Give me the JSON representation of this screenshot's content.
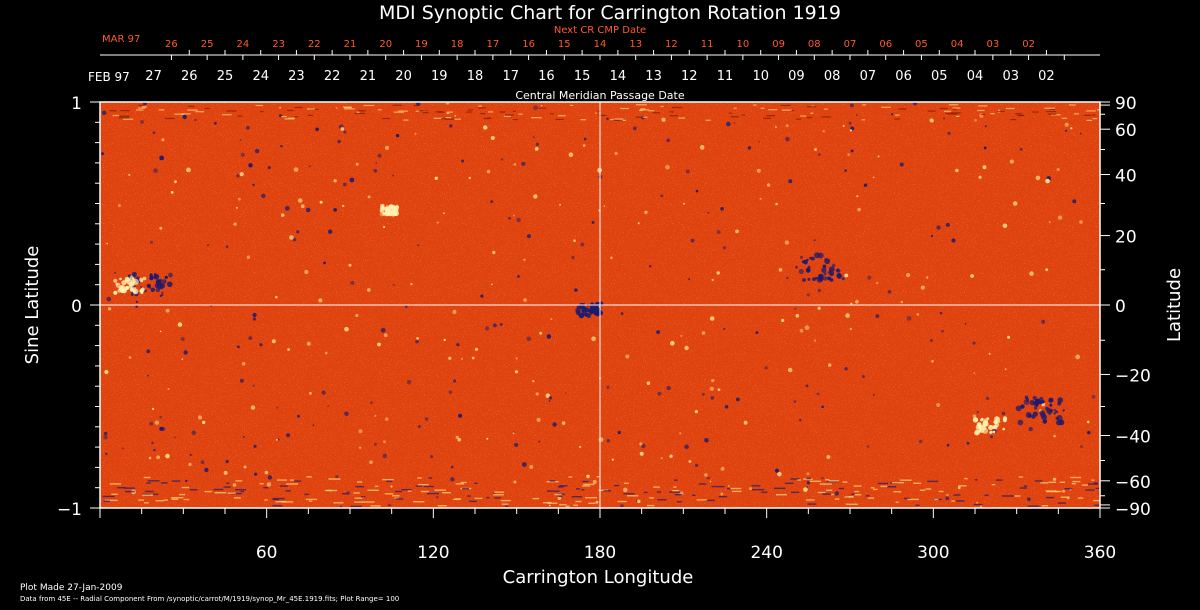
{
  "chart_data": {
    "type": "heatmap",
    "title": "MDI Synoptic Chart for Carrington Rotation 1919",
    "xlabel": "Carrington Longitude",
    "ylabel_left": "Sine Latitude",
    "ylabel_right": "Latitude",
    "xlim": [
      0,
      360
    ],
    "ylim": [
      -1,
      1
    ],
    "x_ticks": [
      60,
      120,
      180,
      240,
      300,
      360
    ],
    "y_ticks_left": [
      1,
      0,
      -1
    ],
    "y_ticks_right": [
      90,
      60,
      40,
      20,
      0,
      -20,
      -40,
      -60,
      -90
    ],
    "grid_lines": {
      "x": 180,
      "y": 0
    },
    "top_axis_label": "Central Meridian Passage Date",
    "top_axis_month": "FEB 97",
    "top_axis_dates": [
      "27",
      "26",
      "25",
      "24",
      "23",
      "22",
      "21",
      "20",
      "19",
      "18",
      "17",
      "16",
      "15",
      "14",
      "13",
      "12",
      "11",
      "10",
      "09",
      "08",
      "07",
      "06",
      "05",
      "04",
      "03",
      "02"
    ],
    "next_axis_label": "Next CR CMP Date",
    "next_axis_month": "MAR 97",
    "next_axis_dates": [
      "26",
      "25",
      "24",
      "23",
      "22",
      "21",
      "20",
      "19",
      "18",
      "17",
      "16",
      "15",
      "14",
      "13",
      "12",
      "11",
      "10",
      "09",
      "08",
      "07",
      "06",
      "05",
      "04",
      "03",
      "02"
    ],
    "footer_line1": "Plot Made 27-Jan-2009",
    "footer_line2": "Data from 45E -- Radial Component From /synoptic/carrot/M/1919/synop_Mr_45E.1919.fits; Plot Range=  100",
    "colors": {
      "background": "#000000",
      "base": "#e0420e",
      "positive": "#ffe28a",
      "negative": "#1c1a6e",
      "axis": "#ffffff",
      "secondary_text": "#ff5a2a"
    }
  }
}
